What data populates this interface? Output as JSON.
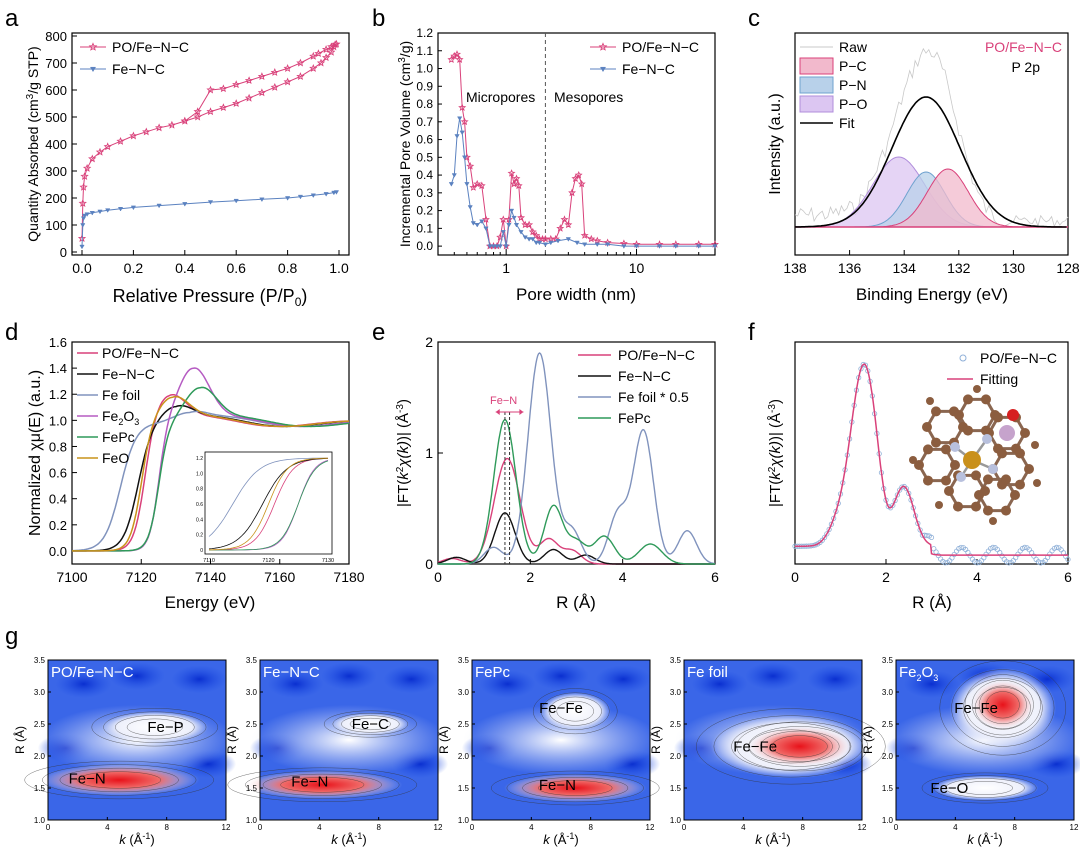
{
  "colors": {
    "pink": "#d9417a",
    "blue": "#5b82c0",
    "black": "#111111",
    "ffoil": "#8093bd",
    "fe2o3": "#b55bc2",
    "fepc": "#2f9a5a",
    "feo": "#c9931a"
  },
  "chart_data": [
    {
      "panel": "a",
      "type": "line",
      "xlabel": "Relative Pressure (P/P0)",
      "ylabel": "Quantity Absorbed (cm3/g STP)",
      "xlim": [
        0,
        1.0
      ],
      "ylim": [
        0,
        800
      ],
      "xticks": [
        "0.0",
        "0.2",
        "0.4",
        "0.6",
        "0.8",
        "1.0"
      ],
      "yticks": [
        "0",
        "100",
        "200",
        "300",
        "400",
        "500",
        "600",
        "700",
        "800"
      ],
      "legend": "top-left",
      "series": [
        {
          "name": "PO/Fe−N−C",
          "color": "#d9417a",
          "x": [
            0.0,
            0.003,
            0.006,
            0.01,
            0.02,
            0.04,
            0.07,
            0.1,
            0.15,
            0.2,
            0.25,
            0.3,
            0.35,
            0.4,
            0.45,
            0.5,
            0.55,
            0.6,
            0.65,
            0.7,
            0.75,
            0.8,
            0.85,
            0.9,
            0.93,
            0.95,
            0.97,
            0.98,
            0.99,
            0.985,
            0.97,
            0.95,
            0.92,
            0.9,
            0.85,
            0.8,
            0.75,
            0.7,
            0.65,
            0.6,
            0.55,
            0.5,
            0.45,
            0.4
          ],
          "y": [
            50,
            180,
            240,
            280,
            310,
            345,
            370,
            390,
            410,
            430,
            445,
            460,
            470,
            485,
            500,
            520,
            535,
            550,
            570,
            590,
            610,
            630,
            650,
            680,
            700,
            720,
            740,
            760,
            770,
            768,
            760,
            750,
            735,
            725,
            700,
            680,
            665,
            650,
            635,
            620,
            605,
            600,
            520,
            485
          ]
        },
        {
          "name": "Fe−N−C",
          "color": "#5b82c0",
          "x": [
            0.0,
            0.003,
            0.006,
            0.01,
            0.02,
            0.04,
            0.07,
            0.1,
            0.15,
            0.2,
            0.3,
            0.4,
            0.5,
            0.6,
            0.7,
            0.8,
            0.85,
            0.9,
            0.95,
            0.98,
            0.99
          ],
          "y": [
            20,
            100,
            125,
            135,
            140,
            145,
            150,
            155,
            160,
            165,
            172,
            178,
            185,
            190,
            195,
            200,
            205,
            210,
            215,
            220,
            222
          ]
        }
      ]
    },
    {
      "panel": "b",
      "type": "line",
      "xlabel": "Pore width (nm)",
      "ylabel": "Incremental Pore Volume (cm3/g)",
      "xscale": "log",
      "xlim": [
        0.3,
        40
      ],
      "ylim": [
        -0.05,
        1.2
      ],
      "xticks": [
        "1",
        "10"
      ],
      "yticks": [
        "0.0",
        "0.1",
        "0.2",
        "0.3",
        "0.4",
        "0.5",
        "0.6",
        "0.7",
        "0.8",
        "0.9",
        "1.0",
        "1.1",
        "1.2"
      ],
      "annotations": [
        "Micropores",
        "Mesopores"
      ],
      "divider_x": 2.0,
      "legend": "top-right",
      "series": [
        {
          "name": "PO/Fe−N−C",
          "color": "#d9417a",
          "x": [
            0.38,
            0.4,
            0.42,
            0.44,
            0.46,
            0.48,
            0.5,
            0.53,
            0.56,
            0.6,
            0.65,
            0.7,
            0.75,
            0.8,
            0.85,
            0.9,
            0.95,
            1.0,
            1.05,
            1.1,
            1.15,
            1.2,
            1.25,
            1.3,
            1.4,
            1.5,
            1.6,
            1.7,
            1.8,
            1.9,
            2.0,
            2.2,
            2.4,
            2.6,
            2.8,
            3.0,
            3.2,
            3.4,
            3.6,
            3.8,
            4.0,
            4.5,
            5,
            6,
            8,
            10,
            15,
            20,
            30,
            40
          ],
          "y": [
            1.05,
            1.07,
            1.08,
            1.05,
            0.78,
            0.7,
            0.5,
            0.45,
            0.33,
            0.35,
            0.34,
            0.15,
            0.0,
            0.0,
            0.0,
            0.05,
            0.15,
            0.0,
            0.15,
            0.41,
            0.35,
            0.38,
            0.34,
            0.16,
            0.12,
            0.12,
            0.08,
            0.06,
            0.04,
            0.04,
            0.04,
            0.04,
            0.04,
            0.1,
            0.15,
            0.12,
            0.3,
            0.38,
            0.4,
            0.35,
            0.06,
            0.04,
            0.03,
            0.02,
            0.015,
            0.01,
            0.01,
            0.01,
            0.01,
            0.01
          ]
        },
        {
          "name": "Fe−N−C",
          "color": "#5b82c0",
          "x": [
            0.38,
            0.4,
            0.42,
            0.44,
            0.46,
            0.48,
            0.5,
            0.53,
            0.56,
            0.6,
            0.65,
            0.7,
            0.75,
            0.8,
            0.85,
            0.9,
            0.95,
            1.0,
            1.05,
            1.1,
            1.15,
            1.2,
            1.3,
            1.4,
            1.5,
            1.6,
            1.7,
            1.8,
            2.0,
            2.2,
            2.5,
            3,
            3.5,
            4,
            5,
            6,
            8,
            10,
            15,
            20,
            30,
            40
          ],
          "y": [
            0.35,
            0.4,
            0.62,
            0.72,
            0.64,
            0.5,
            0.35,
            0.22,
            0.13,
            0.12,
            0.14,
            0.1,
            0.0,
            0.0,
            0.0,
            0.0,
            0.08,
            0.0,
            0.12,
            0.2,
            0.16,
            0.12,
            0.08,
            0.05,
            0.04,
            0.04,
            0.02,
            0.02,
            0.01,
            0.02,
            0.03,
            0.04,
            0.02,
            0.01,
            0.01,
            0.01,
            0.0,
            0.0,
            0.0,
            0.0,
            0.0,
            0.0
          ]
        }
      ]
    },
    {
      "panel": "c",
      "type": "line",
      "xlabel": "Binding Energy (eV)",
      "ylabel": "Intensity (a.u.)",
      "xlim": [
        138,
        128
      ],
      "xticks": [
        "138",
        "136",
        "134",
        "132",
        "130",
        "128"
      ],
      "title": "PO/Fe−N−C",
      "subtitle": "P 2p",
      "legend": [
        "Raw",
        "P−C",
        "P−N",
        "P−O",
        "Fit"
      ],
      "peaks": [
        {
          "name": "P−C",
          "center": 132.4,
          "color": "#e07a9a"
        },
        {
          "name": "P−N",
          "center": 133.2,
          "color": "#8fb4d8"
        },
        {
          "name": "P−O",
          "center": 134.2,
          "color": "#c7a2e6"
        }
      ]
    },
    {
      "panel": "d",
      "type": "line",
      "xlabel": "Energy (eV)",
      "ylabel": "Normalized χμ(E) (a.u.)",
      "xlim": [
        7100,
        7180
      ],
      "ylim": [
        -0.1,
        1.6
      ],
      "xticks": [
        "7100",
        "7120",
        "7140",
        "7160",
        "7180"
      ],
      "yticks": [
        "0.0",
        "0.2",
        "0.4",
        "0.6",
        "0.8",
        "1.0",
        "1.2",
        "1.4",
        "1.6"
      ],
      "inset": {
        "xticks": [
          "7110",
          "7120",
          "7130"
        ],
        "yticks": [
          "0",
          "0.2",
          "0.4",
          "0.6",
          "0.8",
          "1.0",
          "1.2"
        ]
      },
      "series": [
        {
          "name": "PO/Fe−N−C",
          "color": "#d9417a"
        },
        {
          "name": "Fe−N−C",
          "color": "#111111"
        },
        {
          "name": "Fe foil",
          "color": "#8093bd"
        },
        {
          "name": "Fe2O3",
          "color": "#b55bc2"
        },
        {
          "name": "FePc",
          "color": "#2f9a5a"
        },
        {
          "name": "FeO",
          "color": "#c9931a"
        }
      ]
    },
    {
      "panel": "e",
      "type": "line",
      "xlabel": "R (Å)",
      "ylabel": "|FT(k2χ(k))| (Å-3)",
      "xlim": [
        0,
        6
      ],
      "ylim": [
        0,
        2
      ],
      "xticks": [
        "0",
        "2",
        "4",
        "6"
      ],
      "yticks": [
        "0",
        "1",
        "2"
      ],
      "annotation": "Fe−N",
      "series": [
        {
          "name": "PO/Fe−N−C",
          "color": "#d9417a"
        },
        {
          "name": "Fe−N−C",
          "color": "#111111"
        },
        {
          "name": "Fe foil * 0.5",
          "color": "#8093bd"
        },
        {
          "name": "FePc",
          "color": "#2f9a5a"
        }
      ]
    },
    {
      "panel": "f",
      "type": "line",
      "xlabel": "R (Å)",
      "ylabel": "|FT(k2χ(k))| (Å-3)",
      "xlim": [
        0,
        6
      ],
      "xticks": [
        "0",
        "2",
        "4",
        "6"
      ],
      "series": [
        {
          "name": "PO/Fe−N−C",
          "color": "#8fb0d8"
        },
        {
          "name": "Fitting",
          "color": "#d9417a"
        }
      ]
    },
    {
      "panel": "g",
      "type": "heatmap",
      "xlabel": "k (Å-1)",
      "ylabel": "R (Å)",
      "xticks": [
        "0",
        "4",
        "8",
        "12"
      ],
      "yticks": [
        "1.0",
        "1.5",
        "2.0",
        "2.5",
        "3.0",
        "3.5"
      ],
      "maps": [
        {
          "title": "PO/Fe−N−C",
          "labels": [
            "Fe−P",
            "Fe−N"
          ]
        },
        {
          "title": "Fe−N−C",
          "labels": [
            "Fe−C",
            "Fe−N"
          ]
        },
        {
          "title": "FePc",
          "labels": [
            "Fe−Fe",
            "Fe−N"
          ]
        },
        {
          "title": "Fe foil",
          "labels": [
            "Fe−Fe"
          ]
        },
        {
          "title": "Fe2O3",
          "labels": [
            "Fe−Fe",
            "Fe−O"
          ]
        }
      ]
    }
  ],
  "panel_labels": [
    "a",
    "b",
    "c",
    "d",
    "e",
    "f",
    "g"
  ]
}
